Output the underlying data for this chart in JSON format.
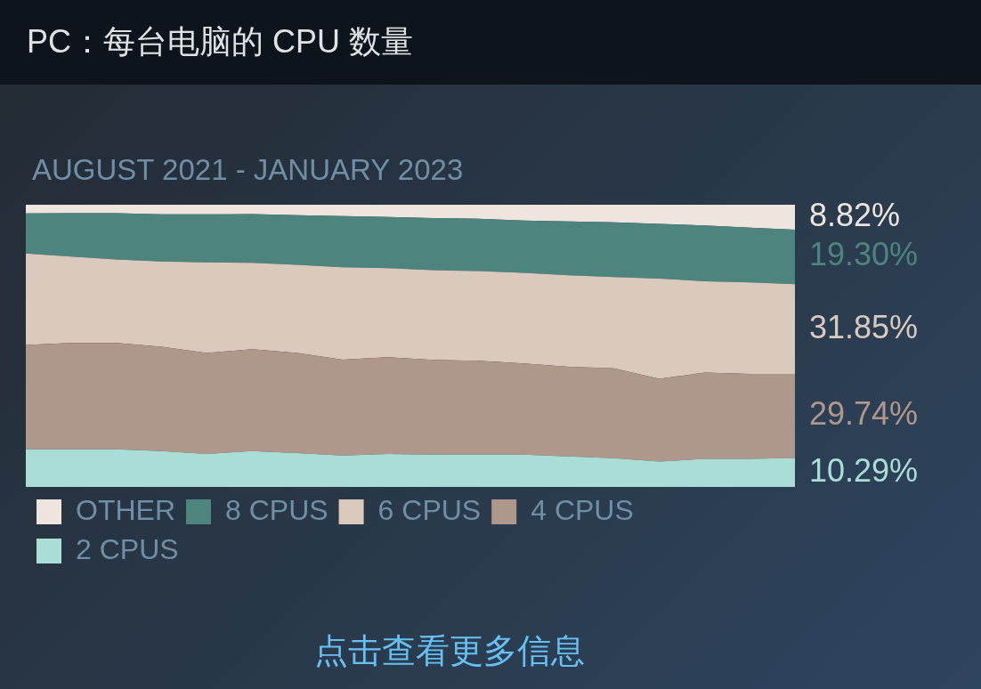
{
  "chart_data": {
    "type": "area",
    "title": "PC：每台电脑的 CPU 数量",
    "subtitle": "AUGUST 2021 - JANUARY 2023",
    "annotations": [
      "点击查看更多信息"
    ],
    "categories": [
      null,
      null,
      null,
      null,
      null,
      null,
      null,
      null,
      null,
      null,
      null,
      null,
      null,
      null,
      null,
      null,
      null,
      null
    ],
    "tick_labels": false,
    "stacked": true,
    "legend": "bottom",
    "series": [
      {
        "name": "2 CPUS",
        "color": "#a9ddd6",
        "values": [
          13.3,
          13.3,
          13.3,
          12.7,
          11.7,
          12.7,
          12.0,
          11.1,
          11.7,
          11.4,
          11.4,
          11.4,
          10.8,
          10.2,
          9.0,
          9.9,
          9.9,
          10.29
        ],
        "value_labels": [
          null,
          null,
          null,
          null,
          null,
          null,
          null,
          null,
          null,
          null,
          null,
          null,
          null,
          null,
          null,
          null,
          null,
          "10.29%"
        ]
      },
      {
        "name": "4 CPUS",
        "color": "#af978c",
        "values": [
          37.0,
          37.7,
          37.7,
          37.0,
          35.8,
          36.1,
          35.5,
          34.0,
          34.3,
          33.6,
          33.3,
          32.4,
          31.8,
          31.8,
          29.3,
          30.6,
          30.2,
          29.74
        ],
        "value_labels": [
          null,
          null,
          null,
          null,
          null,
          null,
          null,
          null,
          null,
          null,
          null,
          null,
          null,
          null,
          null,
          null,
          null,
          "29.74%"
        ]
      },
      {
        "name": "6 CPUS",
        "color": "#d9cabd",
        "values": [
          32.4,
          30.6,
          29.6,
          30.2,
          32.1,
          30.6,
          31.2,
          32.7,
          31.5,
          31.8,
          31.8,
          32.1,
          32.4,
          32.4,
          35.5,
          32.4,
          32.4,
          31.85
        ],
        "value_labels": [
          null,
          null,
          null,
          null,
          null,
          null,
          null,
          null,
          null,
          null,
          null,
          null,
          null,
          null,
          null,
          null,
          null,
          "31.85%"
        ]
      },
      {
        "name": "8 CPUS",
        "color": "#4d857e",
        "values": [
          14.2,
          15.4,
          16.4,
          16.7,
          17.0,
          17.3,
          17.6,
          18.2,
          18.2,
          18.5,
          18.5,
          18.5,
          19.1,
          19.4,
          19.4,
          19.8,
          19.4,
          19.3
        ],
        "value_labels": [
          null,
          null,
          null,
          null,
          null,
          null,
          null,
          null,
          null,
          null,
          null,
          null,
          null,
          null,
          null,
          null,
          null,
          "19.30%"
        ]
      },
      {
        "name": "OTHER",
        "color": "#ede5de",
        "values": [
          3.1,
          3.0,
          3.0,
          3.4,
          3.4,
          3.3,
          3.7,
          4.0,
          4.3,
          4.7,
          5.0,
          5.6,
          5.9,
          6.2,
          6.8,
          7.3,
          8.1,
          8.82
        ],
        "value_labels": [
          null,
          null,
          null,
          null,
          null,
          null,
          null,
          null,
          null,
          null,
          null,
          null,
          null,
          null,
          null,
          null,
          null,
          "8.82%"
        ]
      }
    ]
  }
}
